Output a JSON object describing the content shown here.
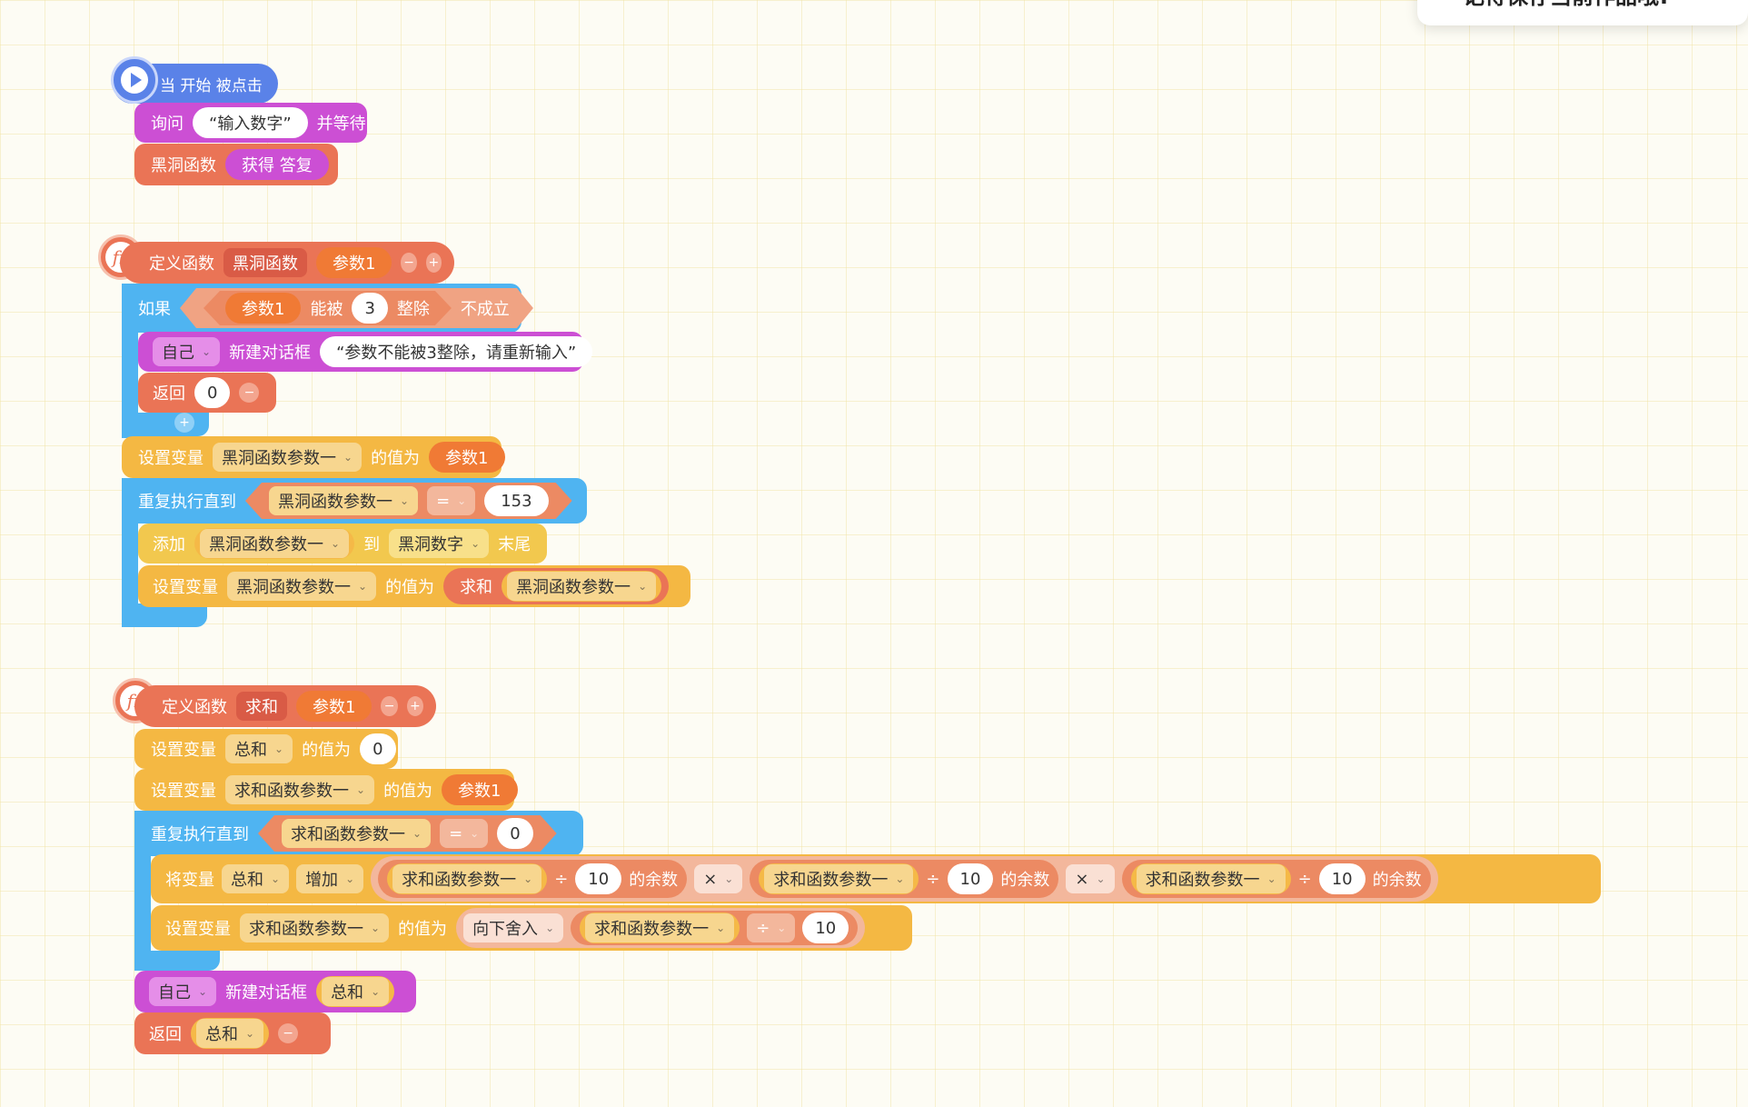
{
  "toast": {
    "text": "记得保存当前作品哦!"
  },
  "script1": {
    "hat_label": "当 开始 被点击",
    "ask_label": "询问",
    "ask_value": "“输入数字”",
    "ask_wait": "并等待",
    "call_name": "黑洞函数",
    "call_arg": "获得 答复"
  },
  "script2": {
    "define_label": "定义函数",
    "func_name": "黑洞函数",
    "param": "参数1",
    "if_label": "如果",
    "cond_param": "参数1",
    "cond_divisible": "能被",
    "cond_num": "3",
    "cond_whole": "整除",
    "cond_not": "不成立",
    "self_label": "自己",
    "dialog_label": "新建对话框",
    "dialog_text": "“参数不能被3整除，请重新输入”",
    "return_label": "返回",
    "return_value": "0",
    "set_label": "设置变量",
    "var1": "黑洞函数参数一",
    "value_of": "的值为",
    "set_value": "参数1",
    "repeat_label": "重复执行直到",
    "eq": "=",
    "target": "153",
    "add_label": "添加",
    "to_label": "到",
    "list_name": "黑洞数字",
    "end_label": "末尾",
    "sum_label": "求和"
  },
  "script3": {
    "define_label": "定义函数",
    "func_name": "求和",
    "param": "参数1",
    "set_label": "设置变量",
    "var_sum": "总和",
    "value_of": "的值为",
    "zero": "0",
    "var_arg": "求和函数参数一",
    "repeat_label": "重复执行直到",
    "eq": "=",
    "change_label": "将变量",
    "increase": "增加",
    "div": "÷",
    "ten": "10",
    "mod_label": "的余数",
    "times": "×",
    "floor": "向下舍入",
    "self_label": "自己",
    "dialog_label": "新建对话框",
    "return_label": "返回"
  }
}
